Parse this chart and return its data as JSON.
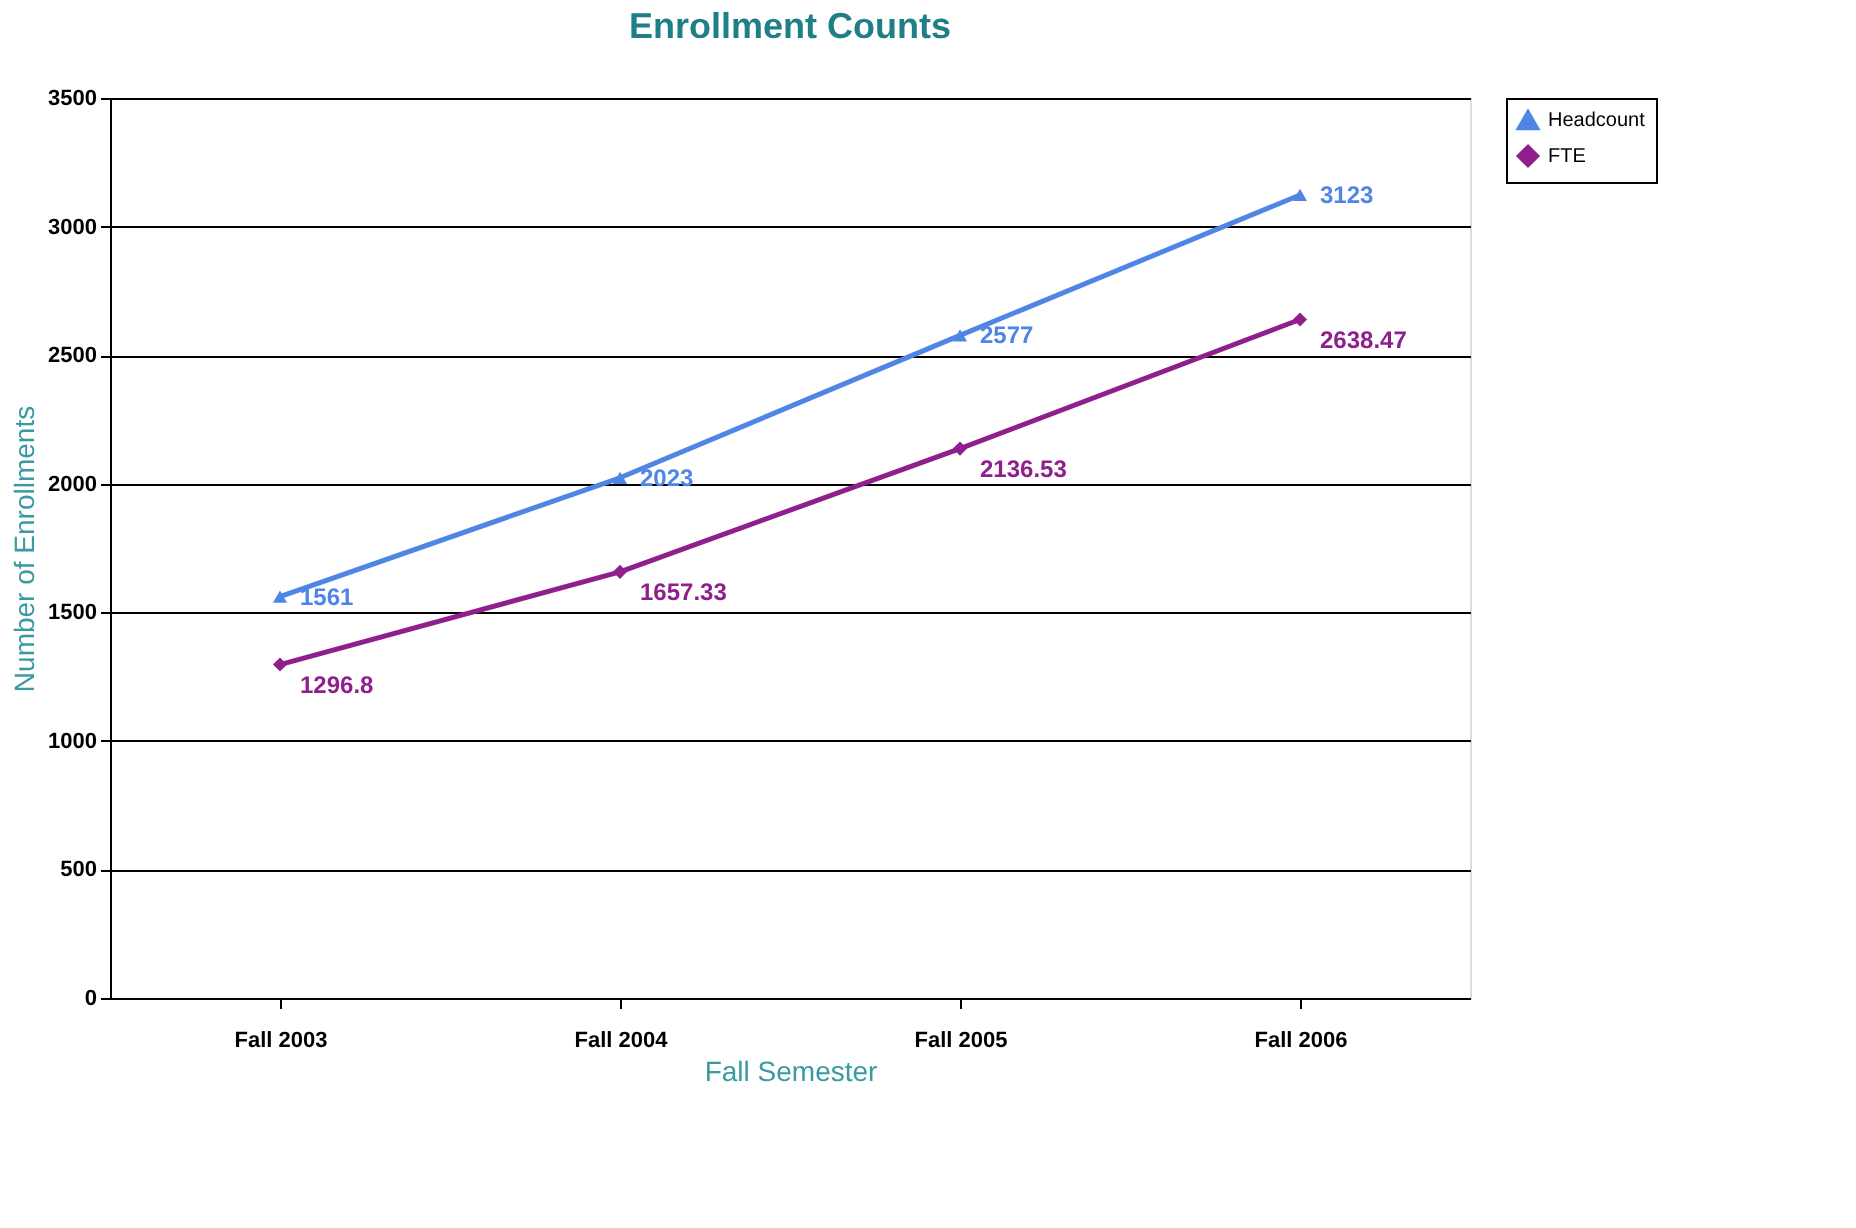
{
  "chart_data": {
    "type": "line",
    "title": "Enrollment Counts",
    "xlabel": "Fall Semester",
    "ylabel": "Number of Enrollments",
    "categories": [
      "Fall 2003",
      "Fall 2004",
      "Fall 2005",
      "Fall 2006"
    ],
    "series": [
      {
        "name": "Headcount",
        "color": "#4f86e6",
        "marker": "triangle",
        "values": [
          1561,
          2023,
          2577,
          3123
        ]
      },
      {
        "name": "FTE",
        "color": "#8e1f8c",
        "marker": "diamond",
        "values": [
          1296.8,
          1657.33,
          2136.53,
          2638.47
        ]
      }
    ],
    "ylim": [
      0,
      3500
    ],
    "yticks": [
      0,
      500,
      1000,
      1500,
      2000,
      2500,
      3000,
      3500
    ],
    "grid": "y",
    "legend": "right",
    "data_labels": true
  }
}
